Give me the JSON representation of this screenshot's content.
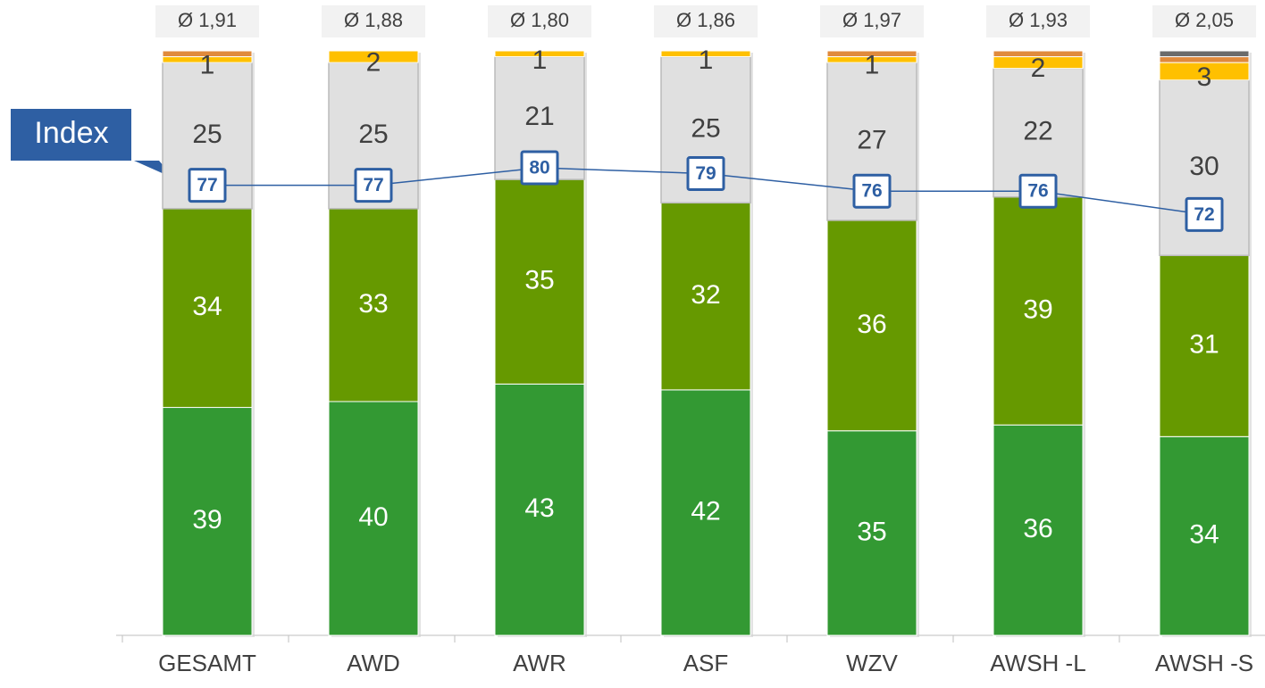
{
  "chart_data": {
    "type": "bar",
    "stacked": true,
    "categories": [
      "GESAMT",
      "AWD",
      "AWR",
      "ASF",
      "WZV",
      "AWSH -L",
      "AWSH -S"
    ],
    "averages": [
      "Ø 1,91",
      "Ø 1,88",
      "Ø 1,80",
      "Ø 1,86",
      "Ø 1,97",
      "Ø 1,93",
      "Ø 2,05"
    ],
    "series": [
      {
        "color": "#339933",
        "values": [
          39,
          40,
          43,
          42,
          35,
          36,
          34
        ]
      },
      {
        "color": "#669900",
        "values": [
          34,
          33,
          35,
          32,
          36,
          39,
          31
        ]
      },
      {
        "color": "#e0e0e0",
        "values": [
          25,
          25,
          21,
          25,
          27,
          22,
          30
        ]
      },
      {
        "color": "#ffc000",
        "values": [
          1,
          2,
          1,
          1,
          1,
          2,
          3
        ]
      },
      {
        "color": "#e08a3c",
        "values": [
          1,
          0,
          0,
          0,
          1,
          1,
          1
        ]
      },
      {
        "color": "#6b6b6b",
        "values": [
          0,
          0,
          0,
          0,
          0,
          0,
          1
        ]
      }
    ],
    "index": {
      "type": "line",
      "name": "Index",
      "color": "#2e5fa3",
      "values": [
        77,
        77,
        80,
        79,
        76,
        76,
        72
      ]
    },
    "ylim": [
      0,
      100
    ]
  }
}
